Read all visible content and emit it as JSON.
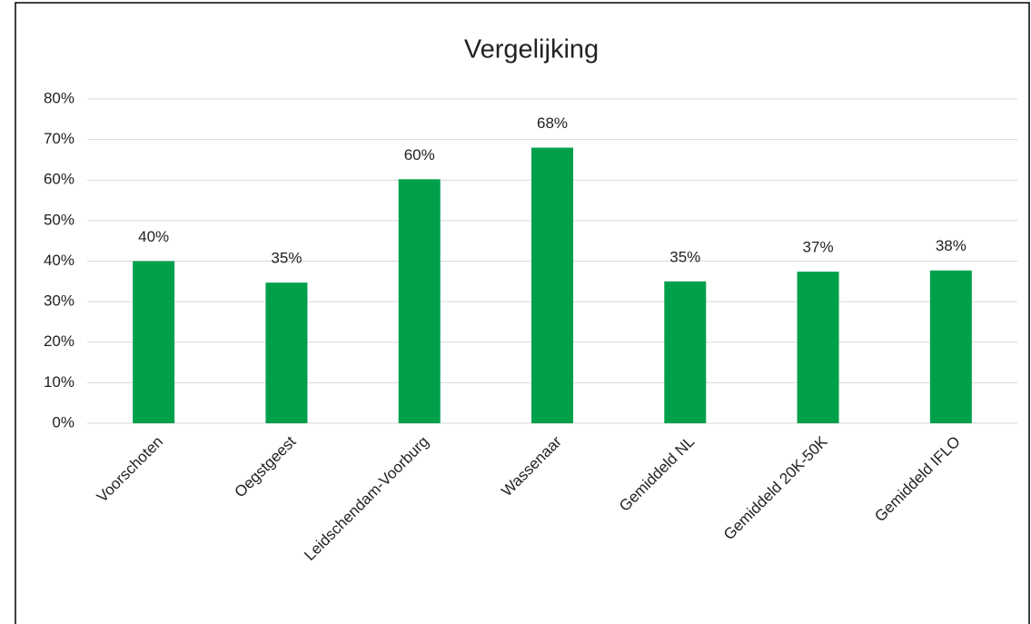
{
  "chart_data": {
    "type": "bar",
    "title": "Vergelijking",
    "categories": [
      "Voorschoten",
      "Oegstgeest",
      "Leidschendam-Voorburg",
      "Wassenaar",
      "Gemiddeld NL",
      "Gemiddeld 20K-50K",
      "Gemiddeld IFLO"
    ],
    "values": [
      40,
      34.7,
      60.2,
      68,
      35,
      37.4,
      37.7
    ],
    "value_labels": [
      "40%",
      "35%",
      "60%",
      "68%",
      "35%",
      "37%",
      "38%"
    ],
    "color": "#00a04b",
    "ylim": [
      0,
      80
    ],
    "yticks": [
      {
        "value": 0,
        "label": "0%"
      },
      {
        "value": 10,
        "label": "10%"
      },
      {
        "value": 20,
        "label": "20%"
      },
      {
        "value": 30,
        "label": "30%"
      },
      {
        "value": 40,
        "label": "40%"
      },
      {
        "value": 50,
        "label": "50%"
      },
      {
        "value": 60,
        "label": "60%"
      },
      {
        "value": 70,
        "label": "70%"
      },
      {
        "value": 80,
        "label": "80%"
      }
    ],
    "grid": true
  }
}
